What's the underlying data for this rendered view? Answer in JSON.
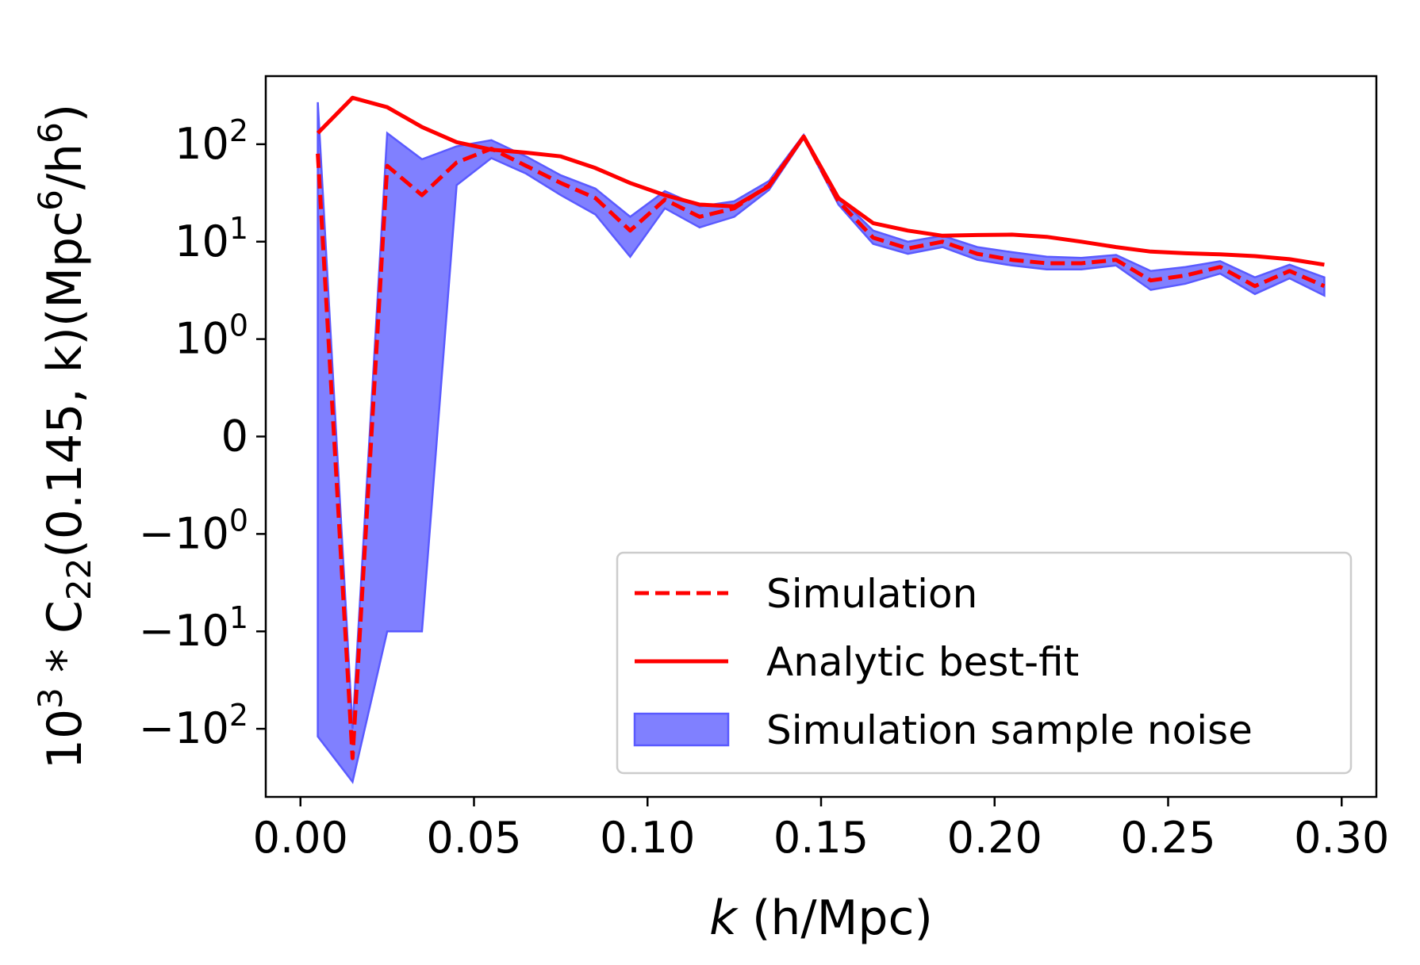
{
  "chart_data": {
    "type": "line",
    "xlabel": "k (h/Mpc)",
    "ylabel": "10^3 * C_22(0.145, k)(Mpc^6/h^6)",
    "yscale": "symlog",
    "symlog_linthresh": 1,
    "xlim": [
      -0.01,
      0.31
    ],
    "ylim": [
      -500,
      500
    ],
    "x_ticks": [
      "0.00",
      "0.05",
      "0.10",
      "0.15",
      "0.20",
      "0.25",
      "0.30"
    ],
    "y_ticks": [
      {
        "base": "10",
        "exp": "2",
        "sign": ""
      },
      {
        "base": "10",
        "exp": "1",
        "sign": ""
      },
      {
        "base": "10",
        "exp": "0",
        "sign": ""
      },
      {
        "base": "0",
        "exp": "",
        "sign": ""
      },
      {
        "base": "10",
        "exp": "0",
        "sign": "−"
      },
      {
        "base": "10",
        "exp": "1",
        "sign": "−"
      },
      {
        "base": "10",
        "exp": "2",
        "sign": "−"
      }
    ],
    "grid": false,
    "legend_position": "lower-right",
    "x": [
      0.005,
      0.015,
      0.025,
      0.035,
      0.045,
      0.055,
      0.065,
      0.075,
      0.085,
      0.095,
      0.105,
      0.115,
      0.125,
      0.135,
      0.145,
      0.155,
      0.165,
      0.175,
      0.185,
      0.195,
      0.205,
      0.215,
      0.225,
      0.235,
      0.245,
      0.255,
      0.265,
      0.275,
      0.285,
      0.295
    ],
    "series": [
      {
        "name": "Simulation",
        "style": "dashed",
        "color": "#ff0000",
        "values": [
          80,
          -200,
          60,
          30,
          65,
          90,
          60,
          40,
          28,
          13,
          27,
          18,
          22,
          38,
          120,
          26,
          11,
          8.5,
          10,
          7.5,
          6.5,
          6,
          6,
          6.5,
          4,
          4.5,
          5.5,
          3.5,
          5,
          3.5
        ]
      },
      {
        "name": "Analytic best-fit",
        "style": "solid",
        "color": "#ff0000",
        "values": [
          130,
          300,
          240,
          150,
          105,
          88,
          82,
          75,
          57,
          40,
          30,
          24,
          23,
          37,
          120,
          28,
          15.5,
          13,
          11.5,
          11.7,
          11.8,
          11.2,
          10,
          8.8,
          7.9,
          7.6,
          7.4,
          7.1,
          6.6,
          5.8
        ]
      }
    ],
    "band": {
      "name": "Simulation sample noise",
      "color": "#8080ff",
      "edge_color": "#5a5aff",
      "upper": [
        270,
        -100,
        130,
        70,
        95,
        110,
        75,
        48,
        35,
        18,
        33,
        23,
        26,
        42,
        125,
        29,
        13,
        10,
        11.5,
        8.8,
        7.8,
        7,
        6.8,
        7.3,
        5,
        5.5,
        6.3,
        4.3,
        5.8,
        4.3
      ],
      "lower": [
        -120,
        -350,
        -10,
        -10,
        38,
        72,
        50,
        30,
        19,
        7,
        22,
        14,
        18,
        34,
        115,
        24,
        9.5,
        7.5,
        8.8,
        6.5,
        5.7,
        5.2,
        5.2,
        5.7,
        3.2,
        3.7,
        4.7,
        2.9,
        4.2,
        2.8
      ]
    }
  }
}
